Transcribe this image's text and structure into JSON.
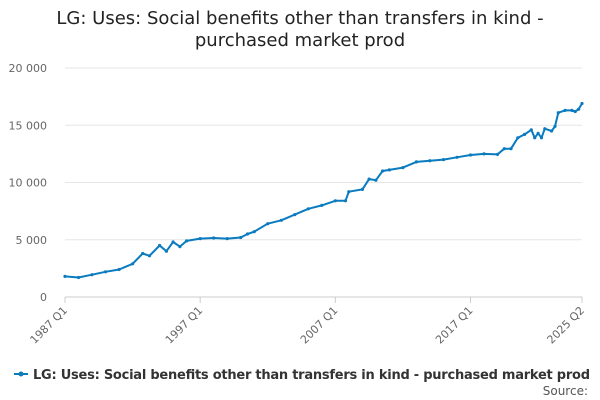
{
  "chart_data": {
    "type": "line",
    "title": "LG: Uses: Social benefits other than transfers in kind - purchased market prod",
    "title_lines": [
      "LG: Uses: Social benefits other than transfers in kind -",
      "purchased market prod"
    ],
    "xlabel": "",
    "ylabel": "",
    "ylim": [
      0,
      20000
    ],
    "y_ticks": [
      {
        "value": 0,
        "label": "0"
      },
      {
        "value": 5000,
        "label": "5 000"
      },
      {
        "value": 10000,
        "label": "10 000"
      },
      {
        "value": 15000,
        "label": "15 000"
      },
      {
        "value": 20000,
        "label": "20 000"
      }
    ],
    "x_range": [
      1987.0,
      2025.25
    ],
    "x_ticks": [
      {
        "value": 1987.0,
        "label": "1987 Q1"
      },
      {
        "value": 1997.0,
        "label": "1997 Q1"
      },
      {
        "value": 2007.0,
        "label": "2007 Q1"
      },
      {
        "value": 2017.0,
        "label": "2017 Q1"
      },
      {
        "value": 2025.25,
        "label": "2025 Q2"
      }
    ],
    "grid": true,
    "legend_position": "bottom",
    "series": [
      {
        "name": "LG: Uses: Social benefits other than transfers in kind - purchased market prod",
        "color": "#0a7bbf",
        "points": [
          [
            1987.0,
            1800
          ],
          [
            1988.0,
            1700
          ],
          [
            1989.0,
            1950
          ],
          [
            1990.0,
            2200
          ],
          [
            1991.0,
            2400
          ],
          [
            1992.0,
            2900
          ],
          [
            1992.75,
            3800
          ],
          [
            1993.25,
            3600
          ],
          [
            1994.0,
            4500
          ],
          [
            1994.5,
            4000
          ],
          [
            1995.0,
            4800
          ],
          [
            1995.5,
            4400
          ],
          [
            1996.0,
            4900
          ],
          [
            1997.0,
            5100
          ],
          [
            1998.0,
            5150
          ],
          [
            1999.0,
            5100
          ],
          [
            2000.0,
            5200
          ],
          [
            2000.5,
            5500
          ],
          [
            2001.0,
            5700
          ],
          [
            2002.0,
            6400
          ],
          [
            2003.0,
            6700
          ],
          [
            2004.0,
            7200
          ],
          [
            2005.0,
            7700
          ],
          [
            2006.0,
            8000
          ],
          [
            2007.0,
            8400
          ],
          [
            2007.75,
            8400
          ],
          [
            2008.0,
            9200
          ],
          [
            2009.0,
            9400
          ],
          [
            2009.5,
            10300
          ],
          [
            2010.0,
            10200
          ],
          [
            2010.5,
            11000
          ],
          [
            2011.0,
            11100
          ],
          [
            2012.0,
            11300
          ],
          [
            2013.0,
            11800
          ],
          [
            2014.0,
            11900
          ],
          [
            2015.0,
            12000
          ],
          [
            2016.0,
            12200
          ],
          [
            2017.0,
            12400
          ],
          [
            2018.0,
            12500
          ],
          [
            2019.0,
            12450
          ],
          [
            2019.5,
            12950
          ],
          [
            2020.0,
            12950
          ],
          [
            2020.5,
            13900
          ],
          [
            2021.0,
            14200
          ],
          [
            2021.5,
            14600
          ],
          [
            2021.75,
            13900
          ],
          [
            2022.0,
            14300
          ],
          [
            2022.25,
            13900
          ],
          [
            2022.5,
            14700
          ],
          [
            2023.0,
            14500
          ],
          [
            2023.25,
            14900
          ],
          [
            2023.5,
            16100
          ],
          [
            2024.0,
            16300
          ],
          [
            2024.5,
            16300
          ],
          [
            2024.75,
            16200
          ],
          [
            2025.0,
            16400
          ],
          [
            2025.25,
            16900
          ]
        ]
      }
    ]
  },
  "footer": {
    "source_label": "Source:"
  }
}
